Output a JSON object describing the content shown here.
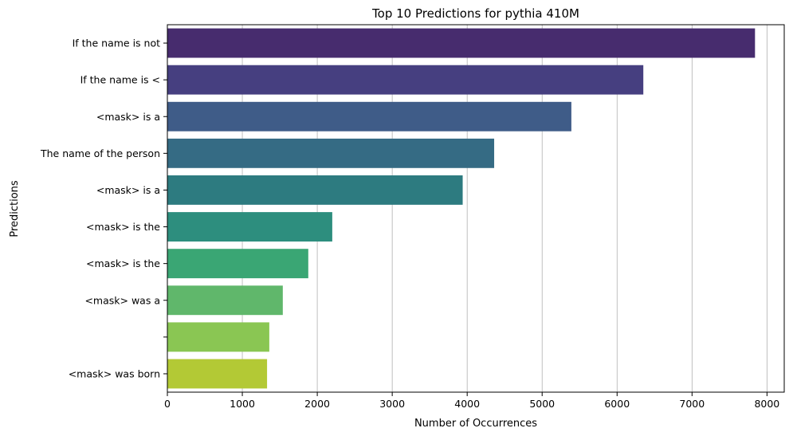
{
  "chart_data": {
    "type": "bar",
    "orientation": "horizontal",
    "title": "Top 10 Predictions for pythia 410M",
    "xlabel": "Number of Occurrences",
    "ylabel": "Predictions",
    "xlim": [
      0,
      8230
    ],
    "xticks": [
      0,
      1000,
      2000,
      3000,
      4000,
      5000,
      6000,
      7000,
      8000
    ],
    "grid": "x",
    "categories": [
      "If the name is not",
      "If the name is <",
      "<mask> is a",
      "The name of the person",
      "<mask> is a",
      "<mask> is the",
      "<mask> is the",
      "<mask> was a",
      "",
      "<mask> was born"
    ],
    "values": [
      7840,
      6350,
      5390,
      4360,
      3940,
      2200,
      1880,
      1540,
      1360,
      1330
    ],
    "colors": [
      "#472c6e",
      "#463f80",
      "#3f5c88",
      "#356b84",
      "#2d7b80",
      "#2d8e7e",
      "#3aa674",
      "#60b76b",
      "#8ac653",
      "#b3c935"
    ]
  }
}
